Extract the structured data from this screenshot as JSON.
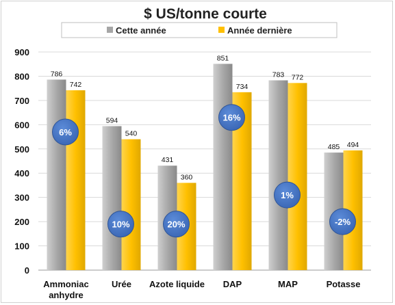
{
  "chart_data": {
    "type": "bar",
    "title": "$ US/tonne courte",
    "categories": [
      [
        "Ammoniac",
        "anhydre"
      ],
      [
        "Urée"
      ],
      [
        "Azote liquide"
      ],
      [
        "DAP"
      ],
      [
        "MAP"
      ],
      [
        "Potasse"
      ]
    ],
    "series": [
      {
        "name": "Cette année",
        "values": [
          786,
          594,
          431,
          851,
          783,
          485
        ],
        "color": "#a6a6a6"
      },
      {
        "name": "Année dernière",
        "values": [
          742,
          540,
          360,
          734,
          772,
          494
        ],
        "color": "#ffc000"
      }
    ],
    "change_badges": [
      {
        "label": "6%",
        "y_value": 570
      },
      {
        "label": "10%",
        "y_value": 190
      },
      {
        "label": "20%",
        "y_value": 190
      },
      {
        "label": "16%",
        "y_value": 630
      },
      {
        "label": "1%",
        "y_value": 310
      },
      {
        "label": "-2%",
        "y_value": 200
      }
    ],
    "badge_color": "#4472c4",
    "ylim": [
      0,
      900
    ],
    "yticks": [
      0,
      100,
      200,
      300,
      400,
      500,
      600,
      700,
      800,
      900
    ],
    "grid": true,
    "legend_position": "top",
    "xlabel": "",
    "ylabel": ""
  }
}
